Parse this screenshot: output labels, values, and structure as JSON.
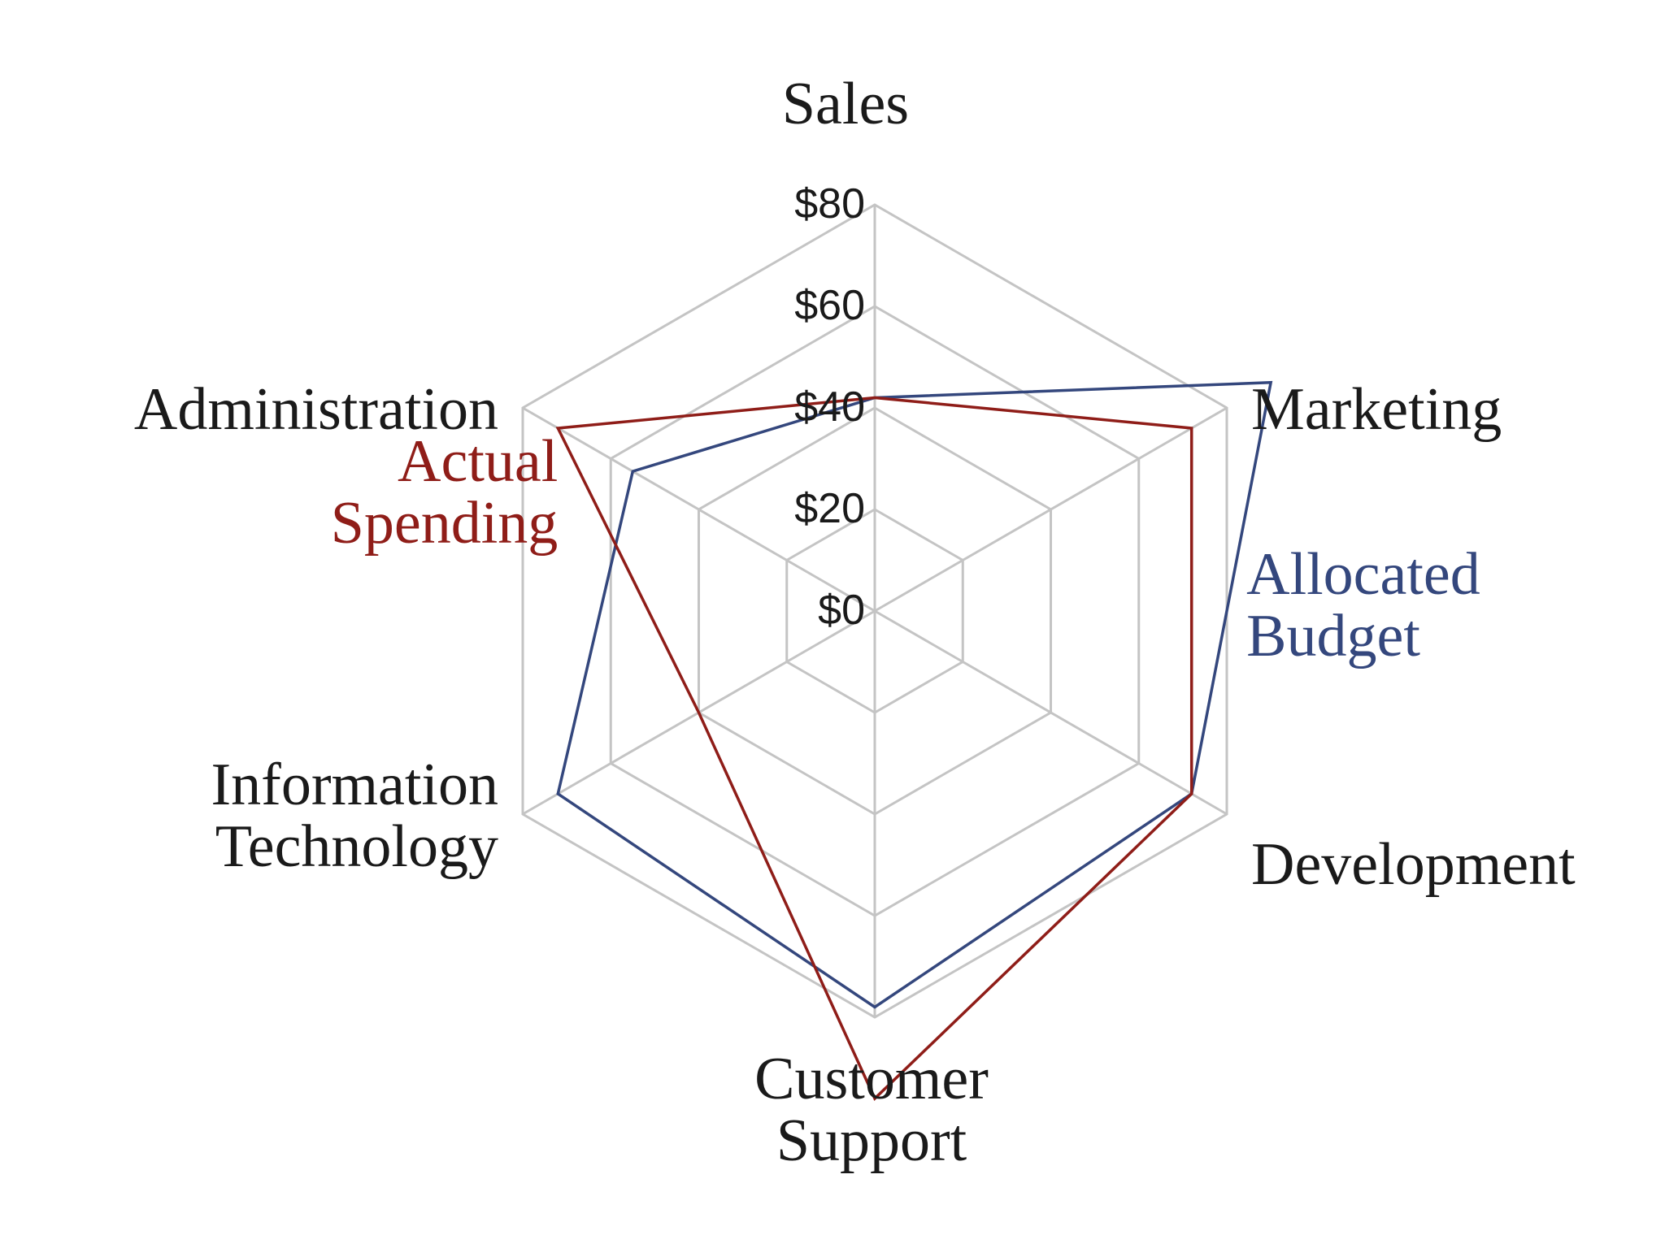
{
  "chart_data": {
    "type": "radar",
    "axes": [
      "Sales",
      "Marketing",
      "Development",
      "Customer Support",
      "Information Technology",
      "Administration"
    ],
    "rlim": [
      0,
      80
    ],
    "ticks": [
      0,
      20,
      40,
      60,
      80
    ],
    "tick_labels": [
      "$0",
      "$20",
      "$40",
      "$60",
      "$80"
    ],
    "grid": true,
    "legend_placement": "inline beside each series line",
    "series": [
      {
        "name": "Allocated Budget",
        "color": "#34477d",
        "values": [
          42,
          90,
          72,
          78,
          72,
          55
        ]
      },
      {
        "name": "Actual Spending",
        "color": "#8f1d18",
        "values": [
          42,
          72,
          72,
          96,
          40,
          72
        ]
      }
    ]
  }
}
